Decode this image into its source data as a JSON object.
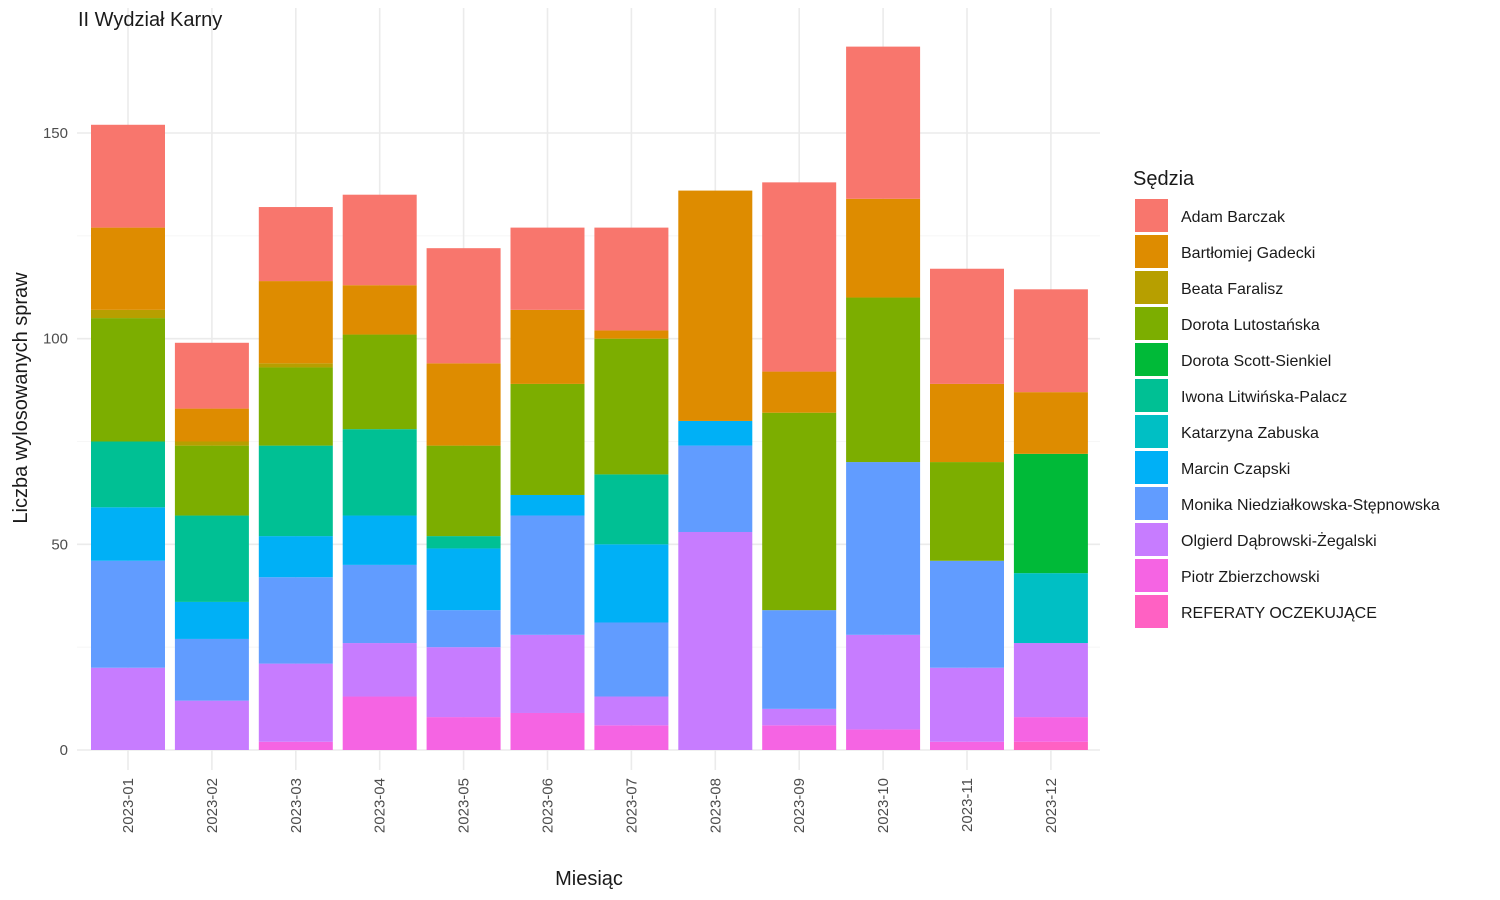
{
  "chart_data": {
    "type": "bar",
    "stacked": true,
    "title": "II Wydział Karny",
    "xlabel": "Miesiąc",
    "ylabel": "Liczba wylosowanych spraw",
    "ylim": [
      0,
      175
    ],
    "yticks": [
      0,
      50,
      100,
      150
    ],
    "grid": true,
    "legend_title": "Sędzia",
    "legend_position": "right",
    "categories": [
      "2023-01",
      "2023-02",
      "2023-03",
      "2023-04",
      "2023-05",
      "2023-06",
      "2023-07",
      "2023-08",
      "2023-09",
      "2023-10",
      "2023-11",
      "2023-12"
    ],
    "series": [
      {
        "name": "REFERATY OCZEKUJĄCE",
        "color": "#FF61C3",
        "values": [
          0,
          0,
          0,
          0,
          0,
          0,
          0,
          0,
          0,
          0,
          0,
          2
        ]
      },
      {
        "name": "Piotr Zbierzchowski",
        "color": "#F564E3",
        "values": [
          0,
          0,
          2,
          13,
          8,
          9,
          6,
          0,
          6,
          5,
          2,
          6
        ]
      },
      {
        "name": "Olgierd Dąbrowski-Żegalski",
        "color": "#C77CFF",
        "values": [
          20,
          12,
          19,
          13,
          17,
          19,
          7,
          53,
          4,
          23,
          18,
          18
        ]
      },
      {
        "name": "Monika Niedziałkowska-Stępnowska",
        "color": "#619CFF",
        "values": [
          26,
          15,
          21,
          19,
          9,
          29,
          18,
          21,
          24,
          42,
          26,
          0
        ]
      },
      {
        "name": "Marcin Czapski",
        "color": "#00B0F6",
        "values": [
          13,
          9,
          10,
          12,
          15,
          5,
          19,
          6,
          0,
          0,
          0,
          0
        ]
      },
      {
        "name": "Katarzyna Zabuska",
        "color": "#00BFC4",
        "values": [
          0,
          0,
          0,
          0,
          0,
          0,
          0,
          0,
          0,
          0,
          0,
          17
        ]
      },
      {
        "name": "Iwona Litwińska-Palacz",
        "color": "#00C094",
        "values": [
          16,
          21,
          22,
          21,
          3,
          0,
          17,
          0,
          0,
          0,
          0,
          0
        ]
      },
      {
        "name": "Dorota Scott-Sienkiel",
        "color": "#00BA38",
        "values": [
          0,
          0,
          0,
          0,
          0,
          0,
          0,
          0,
          0,
          0,
          0,
          29
        ]
      },
      {
        "name": "Dorota Lutostańska",
        "color": "#7CAE00",
        "values": [
          30,
          17,
          19,
          23,
          22,
          27,
          33,
          0,
          48,
          40,
          24,
          0
        ]
      },
      {
        "name": "Beata Faralisz",
        "color": "#B79F00",
        "values": [
          2,
          1,
          1,
          0,
          0,
          0,
          0,
          0,
          0,
          0,
          0,
          0
        ]
      },
      {
        "name": "Bartłomiej Gadecki",
        "color": "#DE8C00",
        "values": [
          20,
          8,
          20,
          12,
          20,
          18,
          2,
          56,
          10,
          24,
          19,
          15
        ]
      },
      {
        "name": "Adam Barczak",
        "color": "#F8766D",
        "values": [
          25,
          16,
          18,
          22,
          28,
          20,
          25,
          0,
          46,
          37,
          28,
          25
        ]
      }
    ],
    "legend_order": [
      "Adam Barczak",
      "Bartłomiej Gadecki",
      "Beata Faralisz",
      "Dorota Lutostańska",
      "Dorota Scott-Sienkiel",
      "Iwona Litwińska-Palacz",
      "Katarzyna Zabuska",
      "Marcin Czapski",
      "Monika Niedziałkowska-Stępnowska",
      "Olgierd Dąbrowski-Żegalski",
      "Piotr Zbierzchowski",
      "REFERATY OCZEKUJĄCE"
    ]
  }
}
